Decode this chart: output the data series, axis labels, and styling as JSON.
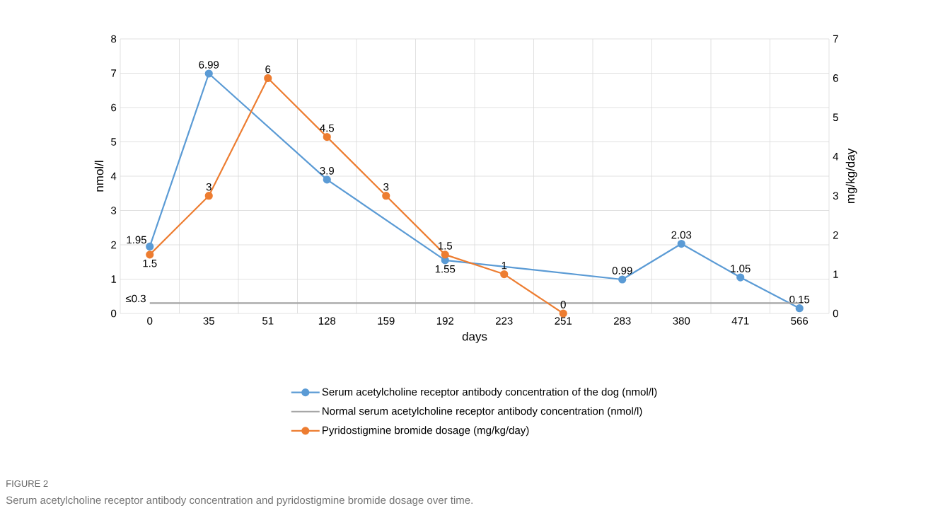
{
  "chart_data": {
    "type": "line",
    "xlabel": "days",
    "ylabel": "nmol/l",
    "y2label": "mg/kg/day",
    "categories": [
      "0",
      "35",
      "51",
      "128",
      "159",
      "192",
      "223",
      "251",
      "283",
      "380",
      "471",
      "566"
    ],
    "series": [
      {
        "name": "Serum acetylcholine receptor antibody concentration of the dog (nmol/l)",
        "color": "#5b9bd5",
        "marker": "circle",
        "values": [
          1.95,
          6.99,
          null,
          3.9,
          null,
          1.55,
          null,
          null,
          0.99,
          2.03,
          1.05,
          0.15
        ],
        "value_labels": [
          "1.95",
          "6.99",
          null,
          "3.9",
          null,
          "1.55",
          null,
          null,
          "0.99",
          "2.03",
          "1.05",
          "0.15"
        ]
      },
      {
        "name": "Normal serum acetylcholine receptor antibody concentration (nmol/l)",
        "color": "#a5a5a5",
        "marker": "none",
        "values": [
          0.3,
          0.3,
          0.3,
          0.3,
          0.3,
          0.3,
          0.3,
          0.3,
          0.3,
          0.3,
          0.3,
          0.3
        ],
        "value_labels": [
          "≤0.3",
          null,
          null,
          null,
          null,
          null,
          null,
          null,
          null,
          null,
          null,
          null
        ]
      },
      {
        "name": "Pyridostigmine bromide dosage (mg/kg/day)",
        "color": "#ed7d31",
        "marker": "circle",
        "axis": "y2",
        "values": [
          1.5,
          3,
          6,
          4.5,
          3,
          1.5,
          1,
          0,
          null,
          null,
          null,
          null
        ],
        "value_labels": [
          "1.5",
          "3",
          "6",
          "4.5",
          "3",
          "1.5",
          "1",
          "0",
          null,
          null,
          null,
          null
        ]
      }
    ],
    "ylim": [
      0,
      8
    ],
    "yticks": [
      0,
      1,
      2,
      3,
      4,
      5,
      6,
      7,
      8
    ],
    "y2lim": [
      0,
      7
    ],
    "y2ticks": [
      0,
      1,
      2,
      3,
      4,
      5,
      6,
      7
    ],
    "grid": true,
    "legend": "bottom",
    "annotations": [
      "FIGURE 2",
      "Serum acetylcholine receptor antibody concentration and pyridostigmine bromide dosage over time."
    ]
  }
}
